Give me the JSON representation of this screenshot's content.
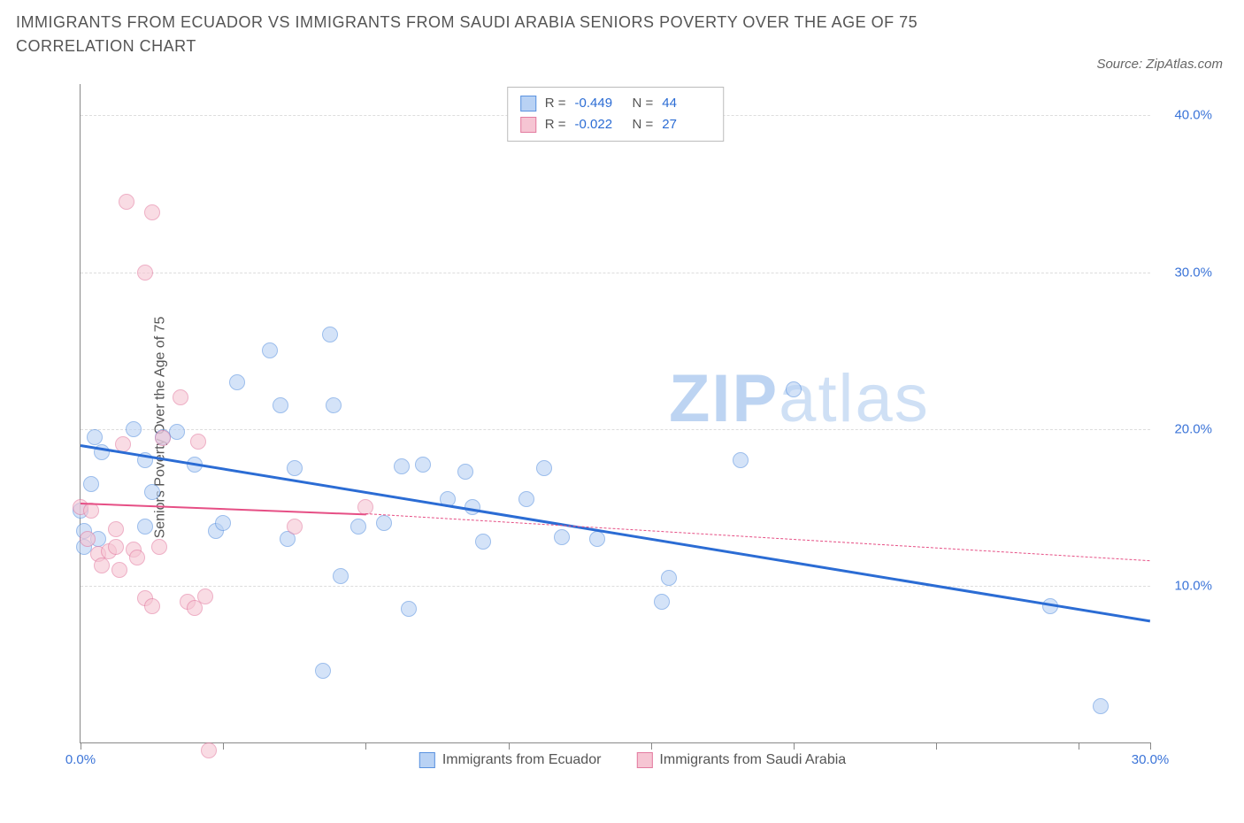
{
  "title": "IMMIGRANTS FROM ECUADOR VS IMMIGRANTS FROM SAUDI ARABIA SENIORS POVERTY OVER THE AGE OF 75 CORRELATION CHART",
  "source": "Source: ZipAtlas.com",
  "y_axis_label": "Seniors Poverty Over the Age of 75",
  "watermark_a": "ZIP",
  "watermark_b": "atlas",
  "chart": {
    "type": "scatter",
    "xlim": [
      0,
      30
    ],
    "ylim": [
      0,
      42
    ],
    "x_ticks": [
      0,
      4,
      8,
      12,
      16,
      20,
      24,
      28,
      30
    ],
    "x_tick_labels": {
      "0": "0.0%",
      "30": "30.0%"
    },
    "y_gridlines": [
      10,
      20,
      30,
      40
    ],
    "y_tick_labels": {
      "10": "10.0%",
      "20": "20.0%",
      "30": "30.0%",
      "40": "40.0%"
    },
    "background_color": "#ffffff",
    "grid_color": "#dddddd",
    "series": [
      {
        "name": "Immigrants from Ecuador",
        "color_fill": "#b9d2f4",
        "color_stroke": "#5a92e0",
        "marker_radius": 9,
        "fill_opacity": 0.6,
        "R": "-0.449",
        "N": "44",
        "trend": {
          "x1": 0,
          "y1": 19.0,
          "x2": 30,
          "y2": 7.8,
          "color": "#2b6cd4",
          "dash_after_x": 30
        },
        "points": [
          [
            0.0,
            14.8
          ],
          [
            0.1,
            13.5
          ],
          [
            0.1,
            12.5
          ],
          [
            0.3,
            16.5
          ],
          [
            0.4,
            19.5
          ],
          [
            0.6,
            18.5
          ],
          [
            1.5,
            20.0
          ],
          [
            1.8,
            18.0
          ],
          [
            1.8,
            13.8
          ],
          [
            2.0,
            16.0
          ],
          [
            2.3,
            19.5
          ],
          [
            2.7,
            19.8
          ],
          [
            3.2,
            17.7
          ],
          [
            3.8,
            13.5
          ],
          [
            4.4,
            23.0
          ],
          [
            5.3,
            25.0
          ],
          [
            5.6,
            21.5
          ],
          [
            5.8,
            13.0
          ],
          [
            6.8,
            4.6
          ],
          [
            7.0,
            26.0
          ],
          [
            7.1,
            21.5
          ],
          [
            7.3,
            10.6
          ],
          [
            7.8,
            13.8
          ],
          [
            8.5,
            14.0
          ],
          [
            9.0,
            17.6
          ],
          [
            9.2,
            8.5
          ],
          [
            9.6,
            17.7
          ],
          [
            10.3,
            15.5
          ],
          [
            10.8,
            17.3
          ],
          [
            11.0,
            15.0
          ],
          [
            11.3,
            12.8
          ],
          [
            12.5,
            15.5
          ],
          [
            13.0,
            17.5
          ],
          [
            13.5,
            13.1
          ],
          [
            14.5,
            13.0
          ],
          [
            16.3,
            9.0
          ],
          [
            16.5,
            10.5
          ],
          [
            18.5,
            18.0
          ],
          [
            20.0,
            22.5
          ],
          [
            27.2,
            8.7
          ],
          [
            28.6,
            2.3
          ],
          [
            0.5,
            13.0
          ],
          [
            4.0,
            14.0
          ],
          [
            6.0,
            17.5
          ]
        ]
      },
      {
        "name": "Immigrants from Saudi Arabia",
        "color_fill": "#f6c5d3",
        "color_stroke": "#e37ba0",
        "marker_radius": 9,
        "fill_opacity": 0.6,
        "R": "-0.022",
        "N": "27",
        "trend": {
          "x1": 0,
          "y1": 15.3,
          "x2": 8,
          "y2": 14.6,
          "dash_to_x": 30,
          "dash_y2": 11.6,
          "color": "#e64f85"
        },
        "points": [
          [
            0.0,
            15.0
          ],
          [
            0.2,
            13.0
          ],
          [
            0.3,
            14.8
          ],
          [
            0.5,
            12.0
          ],
          [
            0.6,
            11.3
          ],
          [
            0.8,
            12.2
          ],
          [
            1.0,
            12.5
          ],
          [
            1.0,
            13.6
          ],
          [
            1.1,
            11.0
          ],
          [
            1.2,
            19.0
          ],
          [
            1.3,
            34.5
          ],
          [
            1.5,
            12.3
          ],
          [
            1.6,
            11.8
          ],
          [
            1.8,
            9.2
          ],
          [
            1.8,
            30.0
          ],
          [
            2.0,
            8.7
          ],
          [
            2.0,
            33.8
          ],
          [
            2.2,
            12.5
          ],
          [
            2.3,
            19.4
          ],
          [
            2.8,
            22.0
          ],
          [
            3.0,
            9.0
          ],
          [
            3.2,
            8.6
          ],
          [
            3.3,
            19.2
          ],
          [
            3.5,
            9.3
          ],
          [
            3.6,
            -0.5
          ],
          [
            6.0,
            13.8
          ],
          [
            8.0,
            15.0
          ]
        ]
      }
    ]
  },
  "legend_bottom": [
    {
      "label": "Immigrants from Ecuador",
      "fill": "#b9d2f4",
      "stroke": "#5a92e0"
    },
    {
      "label": "Immigrants from Saudi Arabia",
      "fill": "#f6c5d3",
      "stroke": "#e37ba0"
    }
  ]
}
